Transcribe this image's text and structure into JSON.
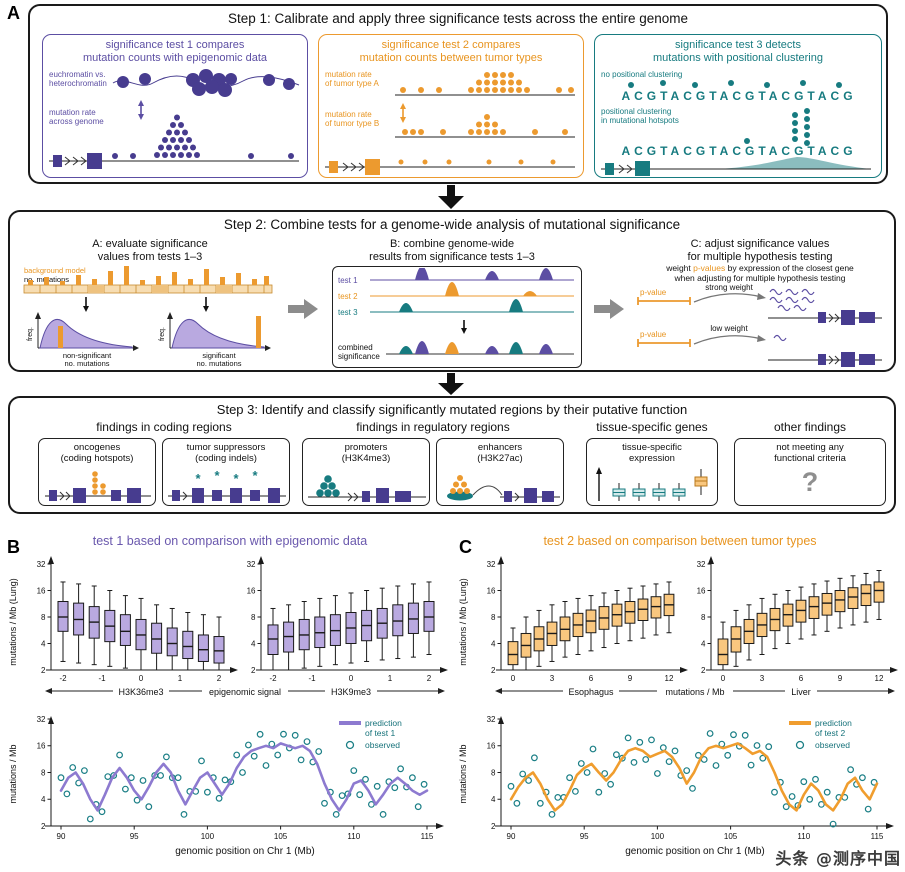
{
  "panel_labels": {
    "a": "A",
    "b": "B",
    "c": "C"
  },
  "colors": {
    "purple": "#5c4ea3",
    "purple_dark": "#473c8f",
    "purple_box_fill": "#b9a9e0",
    "purple_line": "#8d7ad0",
    "orange": "#ec9a2f",
    "orange_box_fill": "#f9c77f",
    "orange_line": "#f09d2e",
    "teal": "#177b80",
    "gray_arrow": "#8c8c8c"
  },
  "step1": {
    "title": "Step 1: Calibrate and apply three significance tests across the entire genome",
    "test1": {
      "heading1": "significance test 1 compares",
      "heading2": "mutation counts with epigenomic data",
      "chromatin_label1": "euchromatin vs.",
      "chromatin_label2": "heterochromatin",
      "rate_label1": "mutation rate",
      "rate_label2": "across genome"
    },
    "test2": {
      "heading1": "significance test 2 compares",
      "heading2": "mutation counts between tumor types",
      "rate_a1": "mutation rate",
      "rate_a2": "of tumor type A",
      "rate_b1": "mutation rate",
      "rate_b2": "of tumor type B"
    },
    "test3": {
      "heading1": "significance test 3 detects",
      "heading2": "mutations with positional clustering",
      "no_cluster_label": "no positional clustering",
      "sequence1": "ACGTACGTACGTACGTACG",
      "cluster_label1": "positional clustering",
      "cluster_label2": "in mutational hotspots",
      "sequence2": "ACGTACGTACGTACGTACG"
    }
  },
  "step2": {
    "title": "Step 2: Combine tests for a genome-wide analysis of mutational significance",
    "section_a": {
      "title1": "A: evaluate significance",
      "title2": "values from tests 1–3",
      "background_label": "background model",
      "mutations_label": "no. mutations",
      "freq_label": "freq.",
      "nonsig1": "non-significant",
      "nonsig2": "no. mutations",
      "sig1": "significant",
      "sig2": "no. mutations"
    },
    "section_b": {
      "title1": "B: combine genome-wide",
      "title2": "results from significance tests 1–3",
      "track1": "test 1",
      "track2": "test 2",
      "track3": "test 3",
      "combined1": "combined",
      "combined2": "significance"
    },
    "section_c": {
      "title1": "C: adjust significance values",
      "title2": "for multiple hypothesis testing",
      "desc_pre": "weight ",
      "desc_highlight": "p-values",
      "desc_post": " by expression of the closest gene",
      "desc_line2": "when adjusting for multiple hypothesis testing",
      "pvalue_label": "p-value",
      "strong_label": "strong weight",
      "low_label": "low weight"
    }
  },
  "step3": {
    "title": "Step 3: Identify and classify significantly mutated regions by their putative function",
    "groups": {
      "coding": "findings in coding regions",
      "regulatory": "findings in regulatory regions",
      "tissue": "tissue-specific genes",
      "other": "other findings"
    },
    "boxes": {
      "oncogenes1": "oncogenes",
      "oncogenes2": "(coding hotspots)",
      "suppressors1": "tumor suppressors",
      "suppressors2": "(coding indels)",
      "indel_mark": "*",
      "promoters1": "promoters",
      "promoters2": "(H3K4me3)",
      "enhancers1": "enhancers",
      "enhancers2": "(H3K27ac)",
      "tissue1": "tissue-specific",
      "tissue2": "expression",
      "other1": "not meeting any",
      "other2": "functional criteria",
      "question": "?"
    }
  },
  "panel_b": {
    "title": "test 1 based on comparison with epigenomic data",
    "ylabel_box": "mutations / Mb (Lung)",
    "ylabel_line": "mutations / Mb",
    "xlabel_left": "H3K36me3",
    "xlabel_mid": "epigenomic signal",
    "xlabel_right": "H3K9me3",
    "xlabel_line": "genomic position on Chr 1 (Mb)",
    "legend_line1": "prediction",
    "legend_line2": "of test 1",
    "legend_observed": "observed"
  },
  "panel_c": {
    "title": "test 2 based on comparison between tumor types",
    "ylabel_box": "mutations / Mb (Lung)",
    "ylabel_line": "mutations / Mb",
    "xlabel_left": "Esophagus",
    "xlabel_mid": "mutations / Mb",
    "xlabel_right": "Liver",
    "xlabel_line": "genomic position on Chr 1 (Mb)",
    "legend_line1": "prediction",
    "legend_line2": "of test 2",
    "legend_observed": "observed"
  },
  "watermark": "头条 @测序中国",
  "chart_data": [
    {
      "id": "b_box_left",
      "type": "boxplot",
      "xlabel": "H3K36me3",
      "ylabel": "mutations / Mb (Lung)",
      "yticks": [
        2,
        4,
        8,
        16,
        32
      ],
      "xticks": [
        "-2",
        "-1",
        "0",
        "1",
        "2"
      ],
      "fill": "#b9a9e0",
      "boxes": [
        [
          2.5,
          5.5,
          8,
          12,
          20
        ],
        [
          2.4,
          5,
          7.5,
          11.5,
          19
        ],
        [
          2.3,
          4.6,
          7,
          10.5,
          18
        ],
        [
          2.2,
          4.2,
          6.3,
          9.5,
          16
        ],
        [
          2.1,
          3.8,
          5.5,
          8.5,
          14
        ],
        [
          2,
          3.4,
          5,
          7.5,
          13
        ],
        [
          2,
          3.1,
          4.5,
          6.8,
          11
        ],
        [
          2,
          2.9,
          4,
          6,
          10
        ],
        [
          2,
          2.7,
          3.7,
          5.5,
          9
        ],
        [
          2,
          2.5,
          3.4,
          5,
          8.5
        ],
        [
          2,
          2.4,
          3.3,
          4.8,
          8
        ]
      ]
    },
    {
      "id": "b_box_right",
      "type": "boxplot",
      "xlabel": "H3K9me3",
      "ylabel": "mutations / Mb (Lung)",
      "yticks": [
        2,
        4,
        8,
        16,
        32
      ],
      "xticks": [
        "-2",
        "-1",
        "0",
        "1",
        "2"
      ],
      "fill": "#b9a9e0",
      "boxes": [
        [
          2,
          3,
          4.5,
          6.5,
          10
        ],
        [
          2,
          3.2,
          4.8,
          7,
          11
        ],
        [
          2.1,
          3.4,
          5,
          7.5,
          12
        ],
        [
          2.2,
          3.6,
          5.3,
          8,
          13
        ],
        [
          2.3,
          3.8,
          5.6,
          8.5,
          14
        ],
        [
          2.4,
          4,
          6,
          9,
          15
        ],
        [
          2.5,
          4.3,
          6.4,
          9.5,
          16
        ],
        [
          2.6,
          4.6,
          6.8,
          10,
          17
        ],
        [
          2.7,
          4.9,
          7.2,
          11,
          18
        ],
        [
          2.8,
          5.2,
          7.6,
          11.5,
          19
        ],
        [
          3,
          5.5,
          8,
          12,
          20
        ]
      ]
    },
    {
      "id": "c_box_left",
      "type": "boxplot",
      "xlabel": "Esophagus",
      "ylabel": "mutations / Mb (Lung)",
      "yticks": [
        2,
        4,
        8,
        16,
        32
      ],
      "xticks": [
        "0",
        "3",
        "6",
        "9",
        "12"
      ],
      "fill": "#f9c77f",
      "boxes": [
        [
          2,
          2.3,
          3,
          4.2,
          6
        ],
        [
          2,
          2.8,
          3.8,
          5.2,
          8
        ],
        [
          2.2,
          3.3,
          4.5,
          6.2,
          9.5
        ],
        [
          2.5,
          3.8,
          5.2,
          7,
          11
        ],
        [
          2.8,
          4.3,
          5.8,
          8,
          12
        ],
        [
          3,
          4.8,
          6.5,
          8.8,
          13
        ],
        [
          3.3,
          5.3,
          7.2,
          9.6,
          14
        ],
        [
          3.6,
          5.8,
          7.8,
          10.5,
          15
        ],
        [
          4,
          6.3,
          8.5,
          11.2,
          16
        ],
        [
          4.3,
          6.8,
          9.2,
          12,
          17
        ],
        [
          4.6,
          7.3,
          9.8,
          12.8,
          18
        ],
        [
          5,
          7.8,
          10.5,
          13.6,
          19
        ],
        [
          5.3,
          8.3,
          11,
          14.5,
          20
        ]
      ]
    },
    {
      "id": "c_box_right",
      "type": "boxplot",
      "xlabel": "Liver",
      "ylabel": "mutations / Mb (Lung)",
      "yticks": [
        2,
        4,
        8,
        16,
        32
      ],
      "xticks": [
        "0",
        "3",
        "6",
        "9",
        "12"
      ],
      "fill": "#f9c77f",
      "boxes": [
        [
          2,
          2.3,
          3,
          4.5,
          7
        ],
        [
          2.2,
          3.2,
          4.5,
          6.2,
          9.5
        ],
        [
          2.6,
          4,
          5.5,
          7.5,
          11
        ],
        [
          3,
          4.8,
          6.5,
          8.8,
          13
        ],
        [
          3.5,
          5.6,
          7.5,
          10,
          14.5
        ],
        [
          4,
          6.3,
          8.5,
          11.2,
          16
        ],
        [
          4.5,
          7,
          9.5,
          12.4,
          17.5
        ],
        [
          5,
          7.7,
          10.5,
          13.6,
          19
        ],
        [
          5.5,
          8.4,
          11.5,
          14.8,
          20.5
        ],
        [
          6,
          9.2,
          12.5,
          16,
          22
        ],
        [
          6.5,
          10,
          13.5,
          17.2,
          23.5
        ],
        [
          7,
          10.8,
          14.8,
          18.6,
          25
        ],
        [
          7.5,
          11.8,
          16,
          20,
          27
        ]
      ]
    },
    {
      "id": "b_line",
      "type": "line",
      "xlabel": "genomic position on Chr 1 (Mb)",
      "ylabel": "mutations / Mb",
      "yticks": [
        2,
        4,
        8,
        16,
        32
      ],
      "xticks": [
        90,
        95,
        100,
        105,
        110,
        115
      ],
      "xlim": [
        90,
        115
      ],
      "ylim": [
        2,
        32
      ],
      "line_color": "#8d7ad0",
      "obs_color": "#1b7f86",
      "prediction": {
        "x_start": 90,
        "x_step": 0.5,
        "y": [
          5,
          7,
          8,
          6,
          4,
          3,
          4.5,
          7,
          9,
          7,
          5,
          4,
          5.5,
          8,
          10,
          8,
          5,
          3.5,
          5,
          7,
          8,
          6,
          4.5,
          6,
          9,
          12,
          14,
          15,
          16,
          15,
          17,
          16,
          15,
          16,
          14,
          10,
          6,
          4,
          3,
          4,
          6,
          6.5,
          5,
          3.5,
          4.5,
          6,
          7,
          6,
          5,
          4.5,
          5
        ]
      },
      "observed": {
        "x_start": 90,
        "x_step": 0.4,
        "y": [
          7,
          4.6,
          9.1,
          6.1,
          8.4,
          2.4,
          3.5,
          2.9,
          7.2,
          7.4,
          12.6,
          5.2,
          7,
          3.9,
          6.5,
          3.3,
          7.4,
          7.4,
          12,
          7,
          7,
          2.7,
          4.9,
          4.9,
          10.8,
          4.8,
          7,
          4.1,
          6.6,
          6.3,
          12.6,
          8,
          16.3,
          12.2,
          21.5,
          9.6,
          16.7,
          12.6,
          21.6,
          15.1,
          21,
          11.1,
          17.8,
          10.5,
          13.8,
          3.6,
          4.8,
          2.7,
          4.4,
          4.6,
          8.4,
          4.5,
          6.7,
          3.5,
          5.6,
          2.7,
          6.3,
          5.4,
          8.8,
          5.5,
          7,
          3.3,
          5.9
        ]
      }
    },
    {
      "id": "c_line",
      "type": "line",
      "xlabel": "genomic position on Chr 1 (Mb)",
      "ylabel": "mutations / Mb",
      "yticks": [
        2,
        4,
        8,
        16,
        32
      ],
      "xticks": [
        90,
        95,
        100,
        105,
        110,
        115
      ],
      "xlim": [
        90,
        115
      ],
      "ylim": [
        2,
        32
      ],
      "line_color": "#f09d2e",
      "obs_color": "#1b7f86",
      "prediction": {
        "x_start": 90,
        "x_step": 0.5,
        "y": [
          4,
          5.5,
          7,
          8,
          6,
          4,
          3,
          3.5,
          5,
          7.5,
          9,
          10,
          8,
          6.5,
          8,
          11,
          14,
          15,
          14,
          12,
          13,
          14,
          12,
          9,
          6,
          8,
          12,
          15,
          16,
          15,
          16,
          17,
          15,
          13,
          14,
          12,
          8,
          5,
          3.5,
          3,
          4.5,
          6,
          5,
          3.5,
          3,
          4,
          6,
          7,
          5,
          4,
          6
        ]
      },
      "observed": {
        "x_start": 90,
        "x_step": 0.4,
        "y": [
          5.6,
          3.6,
          7.7,
          6.5,
          11.7,
          3.6,
          4.8,
          2.7,
          4.2,
          4.2,
          7,
          4.9,
          10.1,
          8,
          14.7,
          4.8,
          7.8,
          5.9,
          12.7,
          11.6,
          19.6,
          10.4,
          17.5,
          11.2,
          18.6,
          7.8,
          15.2,
          10.6,
          14,
          7.4,
          8.4,
          5.3,
          12.5,
          11.2,
          22,
          9.6,
          16.7,
          12.5,
          21.3,
          15.8,
          21,
          9.7,
          16.1,
          11.6,
          15.6,
          4.8,
          6.2,
          3.3,
          4.3,
          3.4,
          6.3,
          4,
          6.7,
          3.5,
          4.8,
          2.1,
          4.2,
          4.2,
          8.6,
          5.9,
          7,
          3.1,
          6.2
        ]
      }
    }
  ]
}
